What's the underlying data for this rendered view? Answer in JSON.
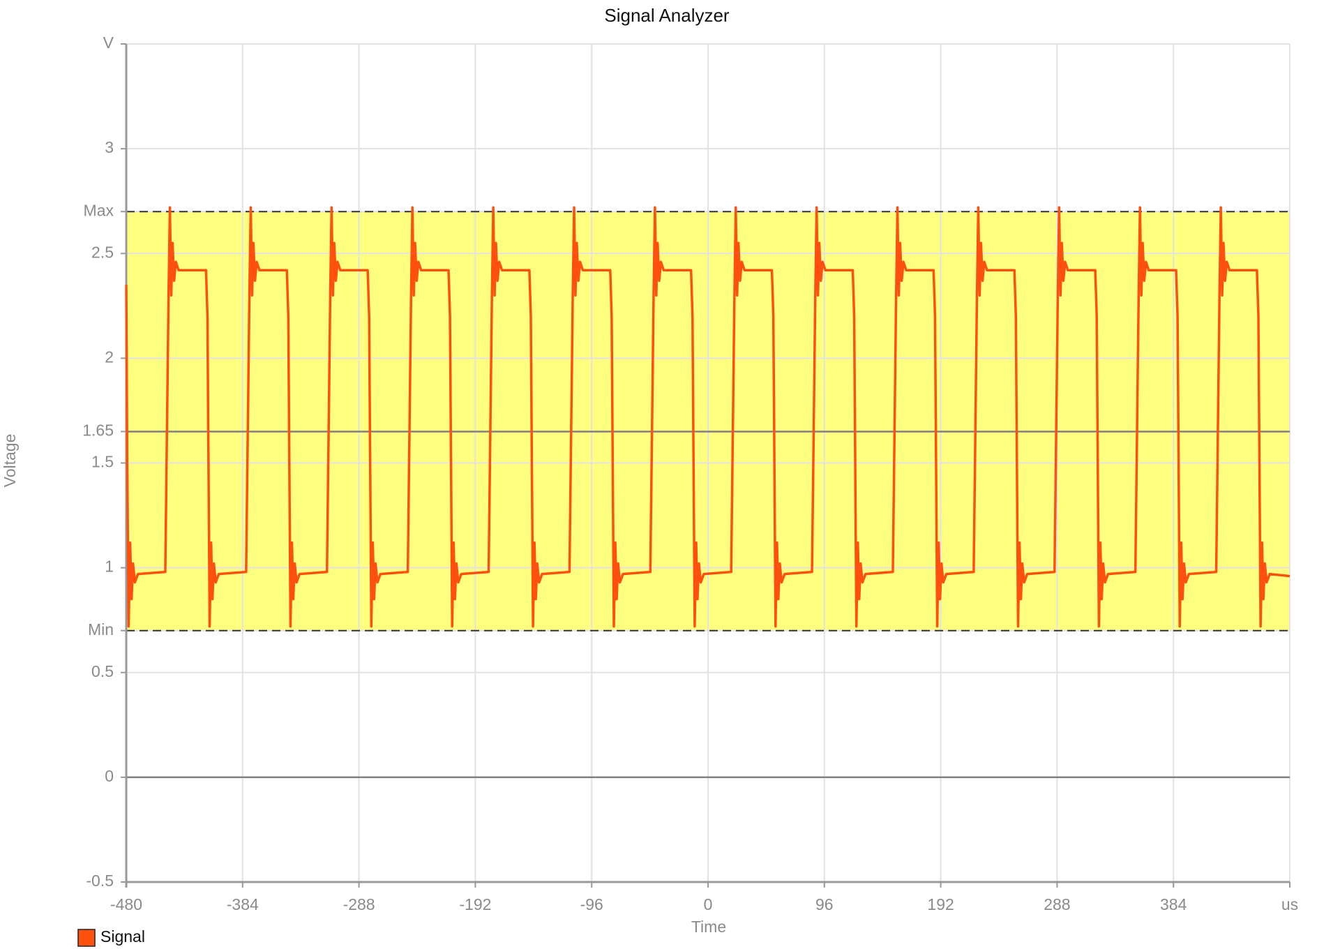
{
  "chart_data": {
    "type": "line",
    "title": "Signal Analyzer",
    "x_label": "Time",
    "y_label": "Voltage",
    "xlim": [
      -480,
      480
    ],
    "xticks": [
      -480,
      -384,
      -288,
      -192,
      -96,
      0,
      96,
      192,
      288,
      384,
      {
        "value": 480,
        "label": "us"
      }
    ],
    "ylim": [
      -0.5,
      3.5
    ],
    "yticks": [
      -0.5,
      0,
      0.5,
      {
        "value": 0.7,
        "label": "Min"
      },
      1,
      1.5,
      1.65,
      2,
      2.5,
      {
        "value": 2.7,
        "label": "Max"
      },
      3,
      {
        "value": 3.5,
        "label": "V"
      }
    ],
    "grid": true,
    "legend": "bottom-left",
    "band": {
      "range": [
        0.7,
        2.7
      ],
      "color": "#ffff80"
    },
    "reference_lines": [
      0,
      1.65
    ],
    "x": [
      -480,
      -479.2,
      -478.0,
      -476.8,
      -475.6,
      -474.4,
      -472.9,
      -470.4,
      -447.8,
      -445.1,
      -444.0,
      -442.9,
      -441.8,
      -440.5,
      -439.1,
      -436.8,
      -414.2,
      -413.0,
      -411.2,
      -410.0,
      -408.9,
      -407.7,
      -406.2,
      -403.7,
      -381.1,
      -378.4,
      -377.3,
      -376.2,
      -375.1,
      -373.8,
      -372.4,
      -370.1,
      -347.5,
      -346.3,
      -344.5,
      -343.3,
      -342.2,
      -341.0,
      -339.5,
      -337.0,
      -314.4,
      -311.7,
      -310.6,
      -309.5,
      -308.4,
      -307.1,
      -305.7,
      -303.4,
      -280.8,
      -279.6,
      -277.8,
      -276.6,
      -275.5,
      -274.3,
      -272.8,
      -270.3,
      -247.7,
      -245.0,
      -243.9,
      -242.8,
      -241.7,
      -240.4,
      -239.0,
      -236.7,
      -214.1,
      -212.9,
      -211.1,
      -209.9,
      -208.8,
      -207.6,
      -206.1,
      -203.6,
      -181.0,
      -178.3,
      -177.2,
      -176.1,
      -175.0,
      -173.7,
      -172.3,
      -170.0,
      -147.4,
      -146.2,
      -144.4,
      -143.2,
      -142.1,
      -140.9,
      -139.4,
      -136.9,
      -114.3,
      -111.6,
      -110.5,
      -109.4,
      -108.3,
      -107.0,
      -105.6,
      -103.3,
      -80.7,
      -79.5,
      -77.7,
      -76.5,
      -75.4,
      -74.2,
      -72.7,
      -70.2,
      -47.6,
      -44.9,
      -43.8,
      -42.7,
      -41.6,
      -40.3,
      -38.9,
      -36.6,
      -14.0,
      -12.8,
      -11.0,
      -9.8,
      -8.7,
      -7.5,
      -6.0,
      -3.5,
      19.1,
      21.8,
      22.9,
      24.0,
      25.1,
      26.4,
      27.8,
      30.1,
      52.7,
      53.9,
      55.7,
      56.9,
      58.0,
      59.2,
      60.7,
      63.2,
      85.8,
      88.5,
      89.6,
      90.7,
      91.8,
      93.1,
      94.5,
      96.8,
      119.4,
      120.6,
      122.4,
      123.6,
      124.7,
      125.9,
      127.4,
      129.9,
      152.5,
      155.2,
      156.3,
      157.4,
      158.5,
      159.8,
      161.2,
      163.5,
      186.1,
      187.3,
      189.1,
      190.3,
      191.4,
      192.6,
      194.1,
      196.6,
      219.2,
      221.9,
      223.0,
      224.1,
      225.2,
      226.5,
      227.9,
      230.2,
      252.8,
      254.0,
      255.8,
      257.0,
      258.1,
      259.3,
      260.8,
      263.3,
      285.9,
      288.6,
      289.7,
      290.8,
      291.9,
      293.2,
      294.6,
      296.9,
      319.5,
      320.7,
      322.5,
      323.7,
      324.8,
      326.0,
      327.5,
      330.0,
      352.6,
      355.3,
      356.4,
      357.5,
      358.6,
      359.9,
      361.3,
      363.6,
      386.2,
      387.4,
      389.2,
      390.4,
      391.5,
      392.7,
      394.2,
      396.7,
      419.3,
      422.0,
      423.1,
      424.2,
      425.3,
      426.6,
      428.0,
      430.3,
      452.9,
      454.1,
      455.9,
      457.1,
      458.2,
      459.4,
      460.9,
      463.4,
      480
    ],
    "series": [
      {
        "name": "Signal",
        "color": "#ff5010",
        "values": [
          2.35,
          1.5,
          0.72,
          1.12,
          0.85,
          1.02,
          0.93,
          0.97,
          0.98,
          2.3,
          2.72,
          2.3,
          2.55,
          2.37,
          2.46,
          2.42,
          2.42,
          2.2,
          0.72,
          1.12,
          0.85,
          1.02,
          0.93,
          0.97,
          0.98,
          2.3,
          2.72,
          2.3,
          2.55,
          2.37,
          2.46,
          2.42,
          2.42,
          2.2,
          0.72,
          1.12,
          0.85,
          1.02,
          0.93,
          0.97,
          0.98,
          2.3,
          2.72,
          2.3,
          2.55,
          2.37,
          2.46,
          2.42,
          2.42,
          2.2,
          0.72,
          1.12,
          0.85,
          1.02,
          0.93,
          0.97,
          0.98,
          2.3,
          2.72,
          2.3,
          2.55,
          2.37,
          2.46,
          2.42,
          2.42,
          2.2,
          0.72,
          1.12,
          0.85,
          1.02,
          0.93,
          0.97,
          0.98,
          2.3,
          2.72,
          2.3,
          2.55,
          2.37,
          2.46,
          2.42,
          2.42,
          2.2,
          0.72,
          1.12,
          0.85,
          1.02,
          0.93,
          0.97,
          0.98,
          2.3,
          2.72,
          2.3,
          2.55,
          2.37,
          2.46,
          2.42,
          2.42,
          2.2,
          0.72,
          1.12,
          0.85,
          1.02,
          0.93,
          0.97,
          0.98,
          2.3,
          2.72,
          2.3,
          2.55,
          2.37,
          2.46,
          2.42,
          2.42,
          2.2,
          0.72,
          1.12,
          0.85,
          1.02,
          0.93,
          0.97,
          0.98,
          2.3,
          2.72,
          2.3,
          2.55,
          2.37,
          2.46,
          2.42,
          2.42,
          2.2,
          0.72,
          1.12,
          0.85,
          1.02,
          0.93,
          0.97,
          0.98,
          2.3,
          2.72,
          2.3,
          2.55,
          2.37,
          2.46,
          2.42,
          2.42,
          2.2,
          0.72,
          1.12,
          0.85,
          1.02,
          0.93,
          0.97,
          0.98,
          2.3,
          2.72,
          2.3,
          2.55,
          2.37,
          2.46,
          2.42,
          2.42,
          2.2,
          0.72,
          1.12,
          0.85,
          1.02,
          0.93,
          0.97,
          0.98,
          2.3,
          2.72,
          2.3,
          2.55,
          2.37,
          2.46,
          2.42,
          2.42,
          2.2,
          0.72,
          1.12,
          0.85,
          1.02,
          0.93,
          0.97,
          0.98,
          2.3,
          2.72,
          2.3,
          2.55,
          2.37,
          2.46,
          2.42,
          2.42,
          2.2,
          0.72,
          1.12,
          0.85,
          1.02,
          0.93,
          0.97,
          0.98,
          2.3,
          2.72,
          2.3,
          2.55,
          2.37,
          2.46,
          2.42,
          2.42,
          2.2,
          0.72,
          1.12,
          0.85,
          1.02,
          0.93,
          0.97,
          0.98,
          2.3,
          2.72,
          2.3,
          2.55,
          2.37,
          2.46,
          2.42,
          2.42,
          2.2,
          0.72,
          1.12,
          0.85,
          1.02,
          0.93,
          0.97,
          0.96
        ]
      }
    ]
  }
}
